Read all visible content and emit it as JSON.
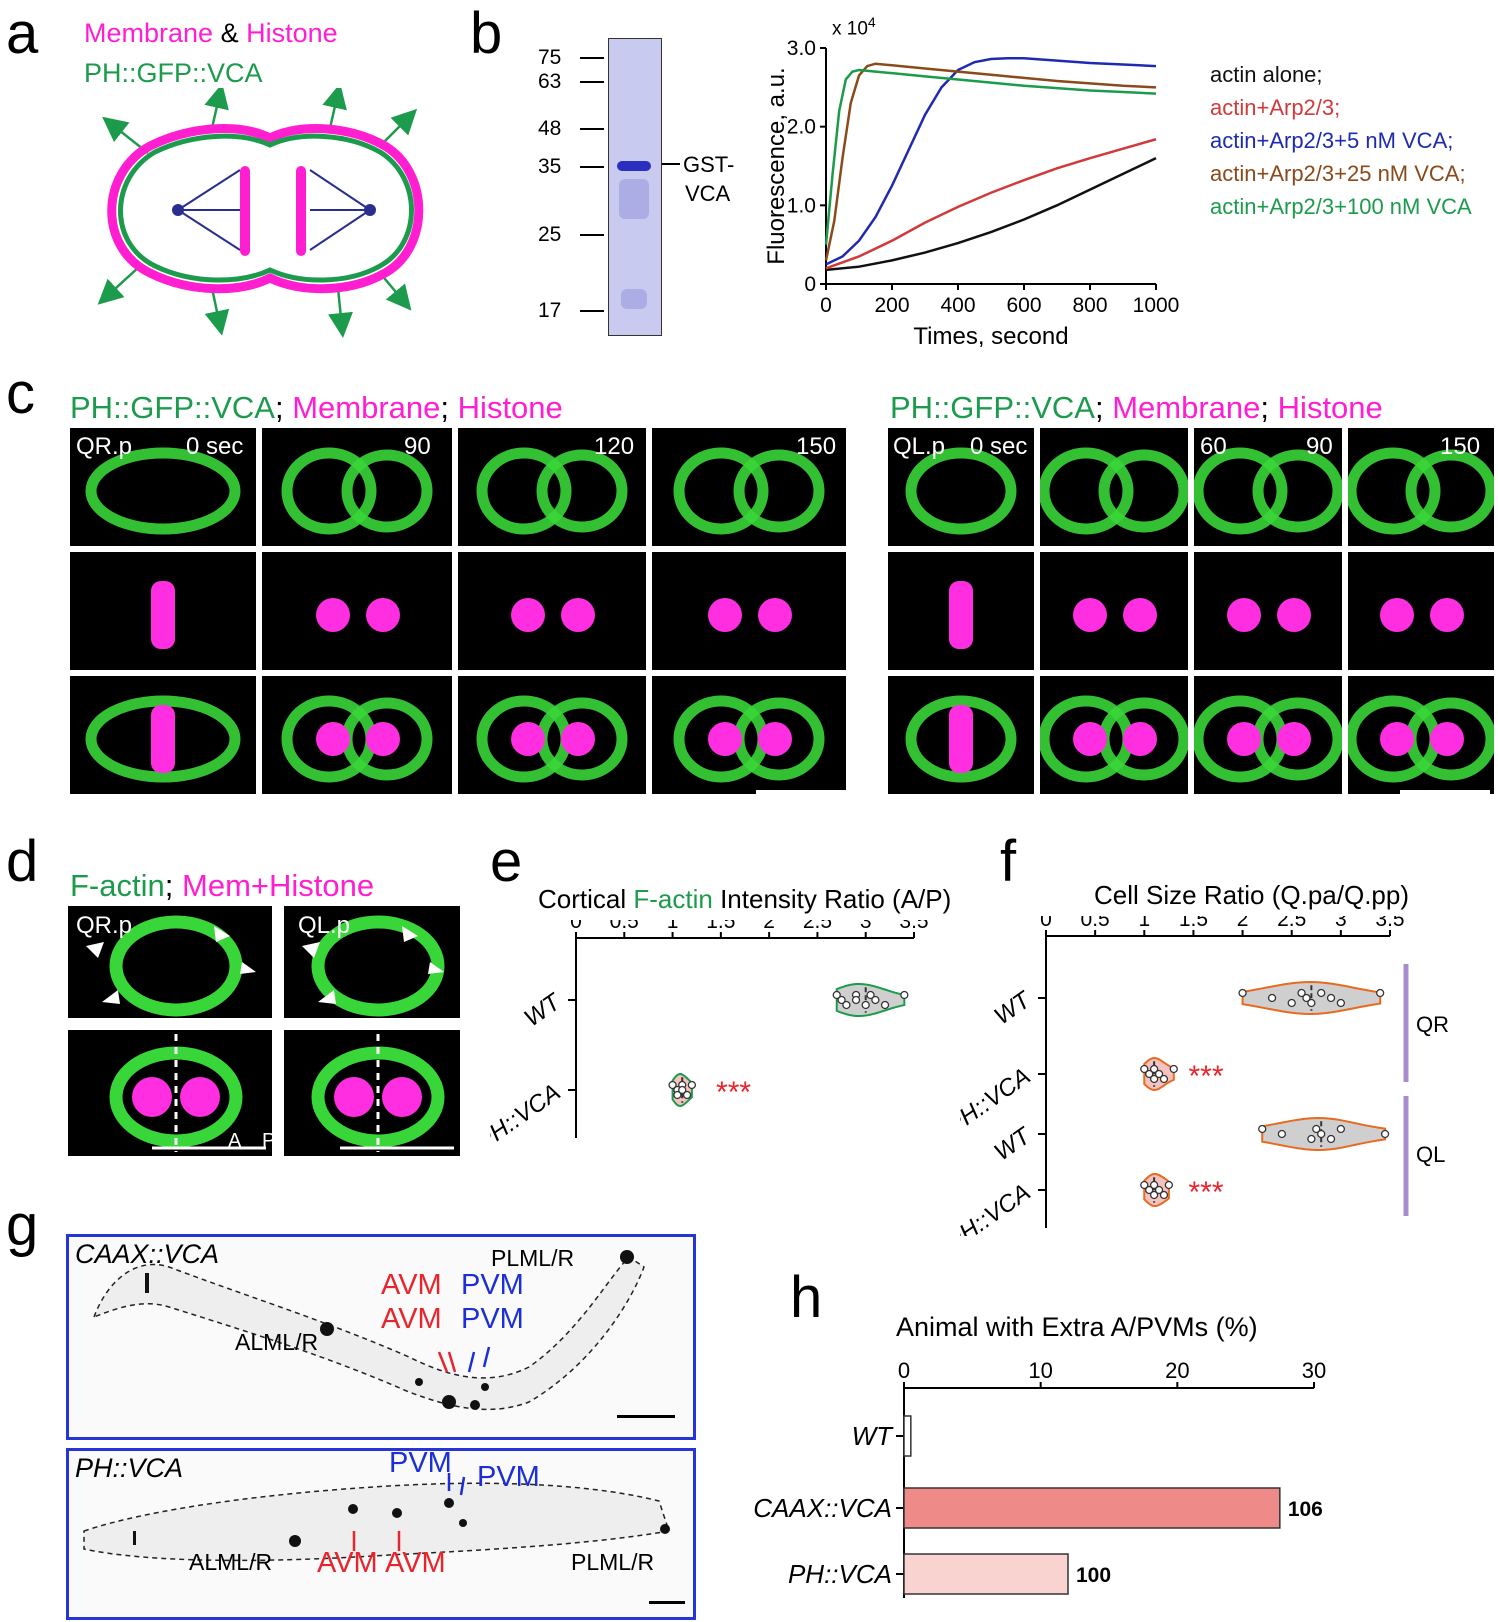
{
  "panel_labels": {
    "a": "a",
    "b": "b",
    "c": "c",
    "d": "d",
    "e": "e",
    "f": "f",
    "g": "g",
    "h": "h"
  },
  "a": {
    "line1_membrane": "Membrane",
    "line1_amp": "&",
    "line1_histone": "Histone",
    "line2": "PH::GFP::VCA",
    "colors": {
      "magenta": "#ff1fd1",
      "green": "#1d9b4c",
      "navy": "#2a2f8f"
    }
  },
  "b": {
    "gel_markers": [
      "75",
      "63",
      "48",
      "35",
      "25",
      "17"
    ],
    "gel_band_label_1": "GST-",
    "gel_band_label_2": "VCA",
    "exponent_label": "x 10",
    "exponent_power": "4",
    "chart_data": {
      "type": "line",
      "xlabel": "Times, second",
      "ylabel": "Fluorescence, a.u.",
      "xlim": [
        0,
        1000
      ],
      "ylim": [
        0,
        3.0
      ],
      "x_ticks": [
        "0",
        "200",
        "400",
        "600",
        "800",
        "1000"
      ],
      "y_ticks": [
        "0",
        "1.0",
        "2.0",
        "3.0"
      ],
      "series": [
        {
          "name": "actin alone;",
          "color": "#111111",
          "x": [
            0,
            100,
            200,
            300,
            400,
            500,
            600,
            700,
            800,
            900,
            1000
          ],
          "y": [
            0.18,
            0.22,
            0.3,
            0.4,
            0.52,
            0.66,
            0.82,
            1.0,
            1.2,
            1.4,
            1.6
          ]
        },
        {
          "name": "actin+Arp2/3;",
          "color": "#d23a3a",
          "x": [
            0,
            100,
            200,
            300,
            400,
            500,
            600,
            700,
            800,
            900,
            1000
          ],
          "y": [
            0.2,
            0.35,
            0.55,
            0.78,
            0.98,
            1.16,
            1.32,
            1.47,
            1.6,
            1.72,
            1.84
          ]
        },
        {
          "name": "actin+Arp2/3+5 nM VCA;",
          "color": "#1e2bb0",
          "x": [
            0,
            50,
            100,
            150,
            200,
            250,
            300,
            350,
            400,
            450,
            500,
            550,
            600,
            700,
            800,
            900,
            1000
          ],
          "y": [
            0.25,
            0.35,
            0.55,
            0.85,
            1.25,
            1.7,
            2.15,
            2.5,
            2.72,
            2.82,
            2.86,
            2.87,
            2.87,
            2.84,
            2.81,
            2.79,
            2.77
          ]
        },
        {
          "name": "actin+Arp2/3+25 nM VCA;",
          "color": "#8a4a1a",
          "x": [
            0,
            25,
            50,
            75,
            100,
            125,
            150,
            200,
            300,
            400,
            500,
            600,
            700,
            800,
            900,
            1000
          ],
          "y": [
            0.3,
            0.8,
            1.6,
            2.3,
            2.65,
            2.77,
            2.8,
            2.78,
            2.74,
            2.7,
            2.66,
            2.62,
            2.58,
            2.55,
            2.52,
            2.5
          ]
        },
        {
          "name": "actin+Arp2/3+100 nM VCA",
          "color": "#1d9b4c",
          "x": [
            0,
            20,
            40,
            60,
            80,
            100,
            150,
            200,
            300,
            400,
            500,
            600,
            700,
            800,
            900,
            1000
          ],
          "y": [
            0.5,
            1.4,
            2.2,
            2.6,
            2.7,
            2.72,
            2.7,
            2.68,
            2.64,
            2.6,
            2.56,
            2.52,
            2.49,
            2.46,
            2.44,
            2.42
          ]
        }
      ]
    }
  },
  "c": {
    "left_title": {
      "vca": "PH::GFP::VCA",
      "sep1": ";",
      "membrane": "Membrane",
      "sep2": ";",
      "histone": "Histone"
    },
    "right_title": {
      "vca": "PH::GFP::VCA",
      "sep1": ";",
      "membrane": "Membrane",
      "sep2": ";",
      "histone": "Histone"
    },
    "left_cell": "QR.p",
    "right_cell": "QL.p",
    "left_times": [
      "0 sec",
      "90",
      "120",
      "150"
    ],
    "right_times": [
      "0 sec",
      "60",
      "90",
      "150"
    ]
  },
  "d": {
    "title_factin": "F-actin",
    "title_sep": ";",
    "title_mem": "Mem+Histone",
    "left_cell": "QR.p",
    "right_cell": "QL.p",
    "axis_a": "A",
    "axis_p": "P"
  },
  "e": {
    "chart_data": {
      "type": "violin",
      "title_part1": "Cortical",
      "title_part2": "F-actin",
      "title_part3": "Intensity Ratio (A/P)",
      "xlim": [
        0,
        3.5
      ],
      "x_ticks": [
        "0",
        "0.5",
        "1",
        "1.5",
        "2",
        "2.5",
        "3",
        "3.5"
      ],
      "categories": [
        "WT",
        "PH::VCA"
      ],
      "values": [
        [
          2.7,
          2.75,
          2.8,
          2.9,
          2.9,
          3.0,
          3.05,
          3.1,
          3.2,
          3.4
        ],
        [
          1.0,
          1.05,
          1.05,
          1.1,
          1.1,
          1.15,
          1.2
        ]
      ],
      "significance": "***"
    }
  },
  "f": {
    "chart_data": {
      "type": "violin",
      "title": "Cell Size Ratio (Q.pa/Q.pp)",
      "xlim": [
        0,
        3.5
      ],
      "x_ticks": [
        "0",
        "0.5",
        "1",
        "1.5",
        "2",
        "2.5",
        "3",
        "3.5"
      ],
      "categories": [
        "WT",
        "PH::VCA",
        "WT",
        "PH::VCA"
      ],
      "groups": [
        "QR",
        "QL"
      ],
      "values": [
        [
          2.0,
          2.3,
          2.5,
          2.6,
          2.65,
          2.7,
          2.8,
          2.9,
          3.0,
          3.4
        ],
        [
          1.0,
          1.05,
          1.1,
          1.1,
          1.15,
          1.2,
          1.3
        ],
        [
          2.2,
          2.4,
          2.7,
          2.75,
          2.8,
          2.9,
          3.0,
          3.45
        ],
        [
          1.0,
          1.05,
          1.1,
          1.1,
          1.15,
          1.2,
          1.25
        ]
      ],
      "significance": "***"
    }
  },
  "g": {
    "top_title": "CAAX::VCA",
    "bottom_title": "PH::VCA",
    "top_labels": {
      "plml": "PLML/R",
      "alml": "ALML/R",
      "avm1": "AVM",
      "avm2": "AVM",
      "pvm1": "PVM",
      "pvm2": "PVM"
    },
    "bottom_labels": {
      "pvm1": "PVM",
      "pvm2": "PVM",
      "alml": "ALML/R",
      "avm1": "AVM",
      "avm2": "AVM",
      "plml": "PLML/R"
    }
  },
  "h": {
    "chart_data": {
      "type": "bar",
      "title": "Animal with Extra A/PVMs (%)",
      "xlim": [
        0,
        30
      ],
      "x_ticks": [
        "0",
        "10",
        "20",
        "30"
      ],
      "categories": [
        "WT",
        "CAAX::VCA",
        "PH::VCA"
      ],
      "values": [
        0.5,
        27.5,
        12
      ],
      "n_labels": [
        "",
        "106",
        "100"
      ],
      "colors": [
        "#ffffff",
        "#ee8a88",
        "#f8d3d0"
      ]
    }
  }
}
